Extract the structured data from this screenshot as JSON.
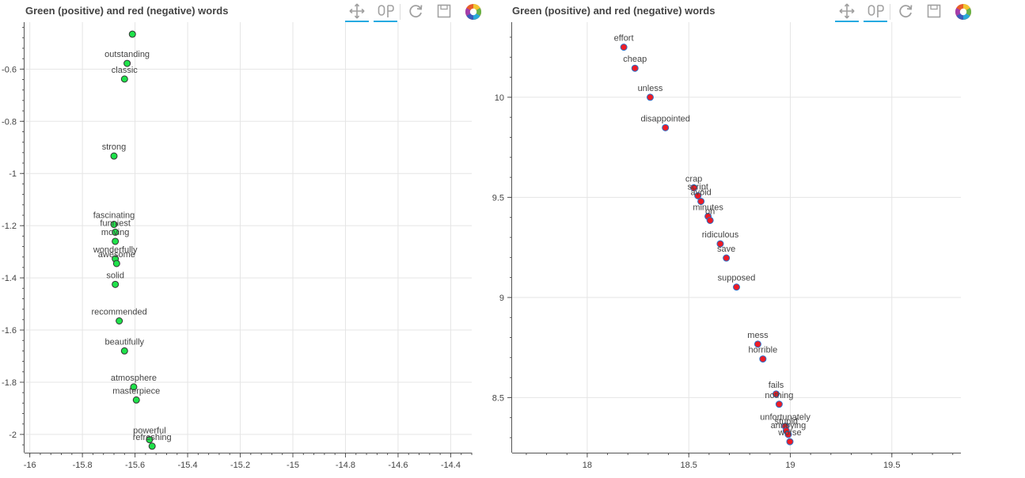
{
  "chart_data": [
    {
      "type": "scatter",
      "title": "Green (positive) and red (negative) words",
      "xlabel": "",
      "ylabel": "",
      "xlim": [
        -16.02,
        -14.32
      ],
      "ylim": [
        -2.07,
        -0.42
      ],
      "x_ticks": [
        "-16",
        "-15.8",
        "-15.6",
        "-15.4",
        "-15.2",
        "-15",
        "-14.8",
        "-14.6",
        "-14.4"
      ],
      "y_ticks": [
        "-0.6",
        "-0.8",
        "-1",
        "-1.2",
        "-1.4",
        "-1.6",
        "-1.8",
        "-2"
      ],
      "grid": true,
      "marker_color": "#1fe24a",
      "marker_edge": "#333333",
      "points": [
        {
          "label": "",
          "x": -15.61,
          "y": -0.466
        },
        {
          "label": "outstanding",
          "x": -15.63,
          "y": -0.578
        },
        {
          "label": "classic",
          "x": -15.64,
          "y": -0.638
        },
        {
          "label": "strong",
          "x": -15.68,
          "y": -0.933
        },
        {
          "label": "fascinating",
          "x": -15.68,
          "y": -1.195
        },
        {
          "label": "funniest",
          "x": -15.675,
          "y": -1.225
        },
        {
          "label": "moving",
          "x": -15.675,
          "y": -1.26
        },
        {
          "label": "wonderfully",
          "x": -15.675,
          "y": -1.327
        },
        {
          "label": "awesome",
          "x": -15.67,
          "y": -1.345
        },
        {
          "label": "solid",
          "x": -15.675,
          "y": -1.425
        },
        {
          "label": "recommended",
          "x": -15.66,
          "y": -1.565
        },
        {
          "label": "beautifully",
          "x": -15.64,
          "y": -1.68
        },
        {
          "label": "atmosphere",
          "x": -15.605,
          "y": -1.818
        },
        {
          "label": "masterpiece",
          "x": -15.595,
          "y": -1.868
        },
        {
          "label": "powerful",
          "x": -15.545,
          "y": -2.02
        },
        {
          "label": "refreshing",
          "x": -15.535,
          "y": -2.045
        }
      ]
    },
    {
      "type": "scatter",
      "title": "Green (positive) and red (negative) words",
      "xlabel": "",
      "ylabel": "",
      "xlim": [
        17.63,
        19.84
      ],
      "ylim": [
        8.225,
        10.375
      ],
      "x_ticks": [
        "18",
        "18.5",
        "19",
        "19.5"
      ],
      "y_ticks": [
        "10",
        "9.5",
        "9",
        "8.5"
      ],
      "grid": true,
      "marker_color": "#ee1c25",
      "marker_edge": "#2a6fc9",
      "points": [
        {
          "label": "effort",
          "x": 18.18,
          "y": 10.25
        },
        {
          "label": "cheap",
          "x": 18.235,
          "y": 10.145
        },
        {
          "label": "unless",
          "x": 18.31,
          "y": 10.0
        },
        {
          "label": "disappointed",
          "x": 18.385,
          "y": 9.848
        },
        {
          "label": "crap",
          "x": 18.525,
          "y": 9.548
        },
        {
          "label": "script",
          "x": 18.545,
          "y": 9.508
        },
        {
          "label": "avoid",
          "x": 18.56,
          "y": 9.48
        },
        {
          "label": "minutes",
          "x": 18.595,
          "y": 9.405
        },
        {
          "label": "oh",
          "x": 18.605,
          "y": 9.385
        },
        {
          "label": "ridiculous",
          "x": 18.655,
          "y": 9.268
        },
        {
          "label": "save",
          "x": 18.685,
          "y": 9.197
        },
        {
          "label": "supposed",
          "x": 18.735,
          "y": 9.052
        },
        {
          "label": "mess",
          "x": 18.84,
          "y": 8.767
        },
        {
          "label": "horrible",
          "x": 18.865,
          "y": 8.693
        },
        {
          "label": "fails",
          "x": 18.93,
          "y": 8.518
        },
        {
          "label": "nothing",
          "x": 18.945,
          "y": 8.467
        },
        {
          "label": "unfortunately",
          "x": 18.975,
          "y": 8.357
        },
        {
          "label": "stupid",
          "x": 18.98,
          "y": 8.335
        },
        {
          "label": "annoying",
          "x": 18.99,
          "y": 8.316
        },
        {
          "label": "worse",
          "x": 18.998,
          "y": 8.28
        }
      ]
    }
  ]
}
